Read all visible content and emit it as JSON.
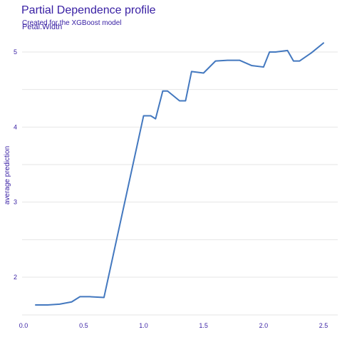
{
  "chart_data": {
    "type": "line",
    "title": "Partial Dependence profile",
    "subtitle": "Created for the XGBoost model",
    "facet_label": "Petal.Width",
    "xlabel": "",
    "ylabel": "average prediction",
    "xlim": [
      0.1,
      2.5
    ],
    "ylim": [
      1.5,
      5.15
    ],
    "x_ticks": [
      0.0,
      0.5,
      1.0,
      1.5,
      2.0,
      2.5
    ],
    "x_tick_labels": [
      "0.0",
      "0.5",
      "1.0",
      "1.5",
      "2.0",
      "2.5"
    ],
    "y_ticks": [
      2,
      3,
      4,
      5
    ],
    "y_tick_labels": [
      "2",
      "3",
      "4",
      "5"
    ],
    "grid": true,
    "series": [
      {
        "color": "#4378bf",
        "points": [
          [
            0.1,
            1.63
          ],
          [
            0.2,
            1.63
          ],
          [
            0.3,
            1.64
          ],
          [
            0.4,
            1.67
          ],
          [
            0.47,
            1.74
          ],
          [
            0.55,
            1.74
          ],
          [
            0.67,
            1.73
          ],
          [
            1.0,
            4.15
          ],
          [
            1.06,
            4.15
          ],
          [
            1.1,
            4.11
          ],
          [
            1.16,
            4.48
          ],
          [
            1.2,
            4.48
          ],
          [
            1.3,
            4.35
          ],
          [
            1.35,
            4.35
          ],
          [
            1.4,
            4.74
          ],
          [
            1.5,
            4.72
          ],
          [
            1.6,
            4.88
          ],
          [
            1.7,
            4.89
          ],
          [
            1.8,
            4.89
          ],
          [
            1.9,
            4.82
          ],
          [
            2.0,
            4.8
          ],
          [
            2.05,
            5.0
          ],
          [
            2.1,
            5.0
          ],
          [
            2.2,
            5.02
          ],
          [
            2.25,
            4.88
          ],
          [
            2.3,
            4.88
          ],
          [
            2.4,
            4.99
          ],
          [
            2.5,
            5.12
          ]
        ]
      }
    ]
  }
}
